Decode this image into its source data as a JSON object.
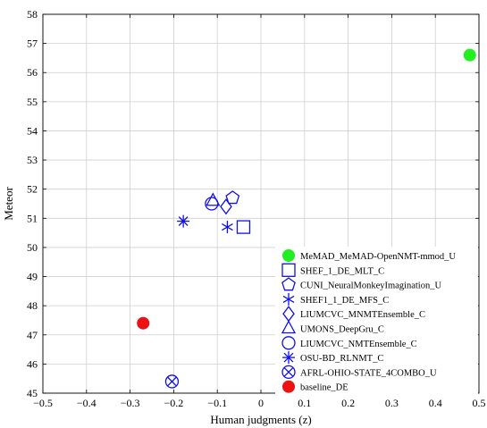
{
  "chart_data": {
    "type": "scatter",
    "xlabel": "Human judgments (z)",
    "ylabel": "Meteor",
    "xlim": [
      -0.5,
      0.5
    ],
    "ylim": [
      45,
      58
    ],
    "x_ticks": [
      -0.5,
      -0.4,
      -0.3,
      -0.2,
      -0.1,
      0,
      0.1,
      0.2,
      0.3,
      0.4,
      0.5
    ],
    "x_tick_labels": [
      "−0.5",
      "−0.4",
      "−0.3",
      "−0.2",
      "−0.1",
      "0",
      "0.1",
      "0.2",
      "0.3",
      "0.4",
      "0.5"
    ],
    "y_ticks": [
      45,
      46,
      47,
      48,
      49,
      50,
      51,
      52,
      53,
      54,
      55,
      56,
      57,
      58
    ],
    "y_tick_labels": [
      "45",
      "46",
      "47",
      "48",
      "49",
      "50",
      "51",
      "52",
      "53",
      "54",
      "55",
      "56",
      "57",
      "58"
    ],
    "grid": true,
    "legend_position": "bottom-right",
    "series": [
      {
        "name": "MeMAD_MeMAD-OpenNMT-mmod_U",
        "marker": "filled-circle",
        "color": "#22ee22",
        "x": 0.479,
        "y": 56.6
      },
      {
        "name": "SHEF_1_DE_MLT_C",
        "marker": "square",
        "color": "#1010ee",
        "x": -0.04,
        "y": 50.7
      },
      {
        "name": "CUNI_NeuralMonkeyImagination_U",
        "marker": "pentagon",
        "color": "#1010ee",
        "x": -0.065,
        "y": 51.7
      },
      {
        "name": "SHEF1_1_DE_MFS_C",
        "marker": "asterisk",
        "color": "#1010ee",
        "x": -0.077,
        "y": 50.7
      },
      {
        "name": "LIUMCVC_MNMTEnsemble_C",
        "marker": "diamond",
        "color": "#1010ee",
        "x": -0.08,
        "y": 51.4
      },
      {
        "name": "UMONS_DeepGru_C",
        "marker": "triangle",
        "color": "#1010ee",
        "x": -0.11,
        "y": 51.6
      },
      {
        "name": "LIUMCVC_NMTEnsemble_C",
        "marker": "circle",
        "color": "#1010ee",
        "x": -0.113,
        "y": 51.5
      },
      {
        "name": "OSU-BD_RLNMT_C",
        "marker": "star",
        "color": "#1010ee",
        "x": -0.178,
        "y": 50.9
      },
      {
        "name": "AFRL-OHIO-STATE_4COMBO_U",
        "marker": "circle-x",
        "color": "#1010ee",
        "x": -0.204,
        "y": 45.4
      },
      {
        "name": "baseline_DE",
        "marker": "filled-circle",
        "color": "#ee1111",
        "x": -0.27,
        "y": 47.4
      }
    ]
  }
}
